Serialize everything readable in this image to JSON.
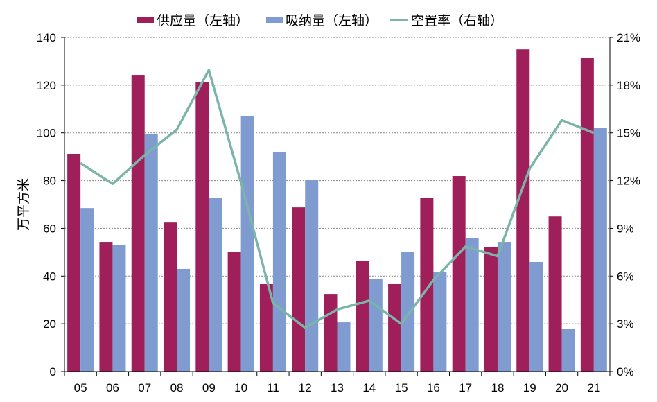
{
  "chart_data": {
    "type": "bar",
    "categories": [
      "05",
      "06",
      "07",
      "08",
      "09",
      "10",
      "11",
      "12",
      "13",
      "14",
      "15",
      "16",
      "17",
      "18",
      "19",
      "20",
      "21"
    ],
    "series": [
      {
        "name": "供应量（左轴）",
        "axis": "left",
        "kind": "bar",
        "color": "#9E1F5A",
        "values": [
          91.2,
          54.3,
          124.3,
          62.4,
          121.4,
          50,
          36.6,
          68.8,
          32.5,
          46.2,
          36.6,
          72.9,
          81.9,
          52,
          135,
          65,
          131.3
        ]
      },
      {
        "name": "吸纳量（左轴）",
        "axis": "left",
        "kind": "bar",
        "color": "#7F9BCF",
        "values": [
          68.5,
          53.1,
          99.6,
          43,
          72.9,
          106.9,
          92,
          80.2,
          20.6,
          38.9,
          50.2,
          41.8,
          56,
          54.3,
          45.9,
          18,
          102
        ]
      },
      {
        "name": "空置率（右轴）",
        "axis": "right",
        "kind": "line",
        "color": "#7BB5AA",
        "values": [
          13.1,
          11.8,
          13.6,
          15.2,
          18.95,
          11.9,
          4.3,
          2.75,
          3.9,
          4.45,
          3.0,
          5.75,
          7.85,
          7.25,
          12.75,
          15.8,
          15.0
        ]
      }
    ],
    "ylabel": "万平方米",
    "ylim": [
      0,
      140
    ],
    "yticks": [
      "0",
      "20",
      "40",
      "60",
      "80",
      "100",
      "120",
      "140"
    ],
    "y2lim": [
      0,
      21
    ],
    "y2ticks": [
      "0%",
      "3%",
      "6%",
      "9%",
      "12%",
      "15%",
      "18%",
      "21%"
    ],
    "grid": "horizontal dashed",
    "legend": "top"
  }
}
